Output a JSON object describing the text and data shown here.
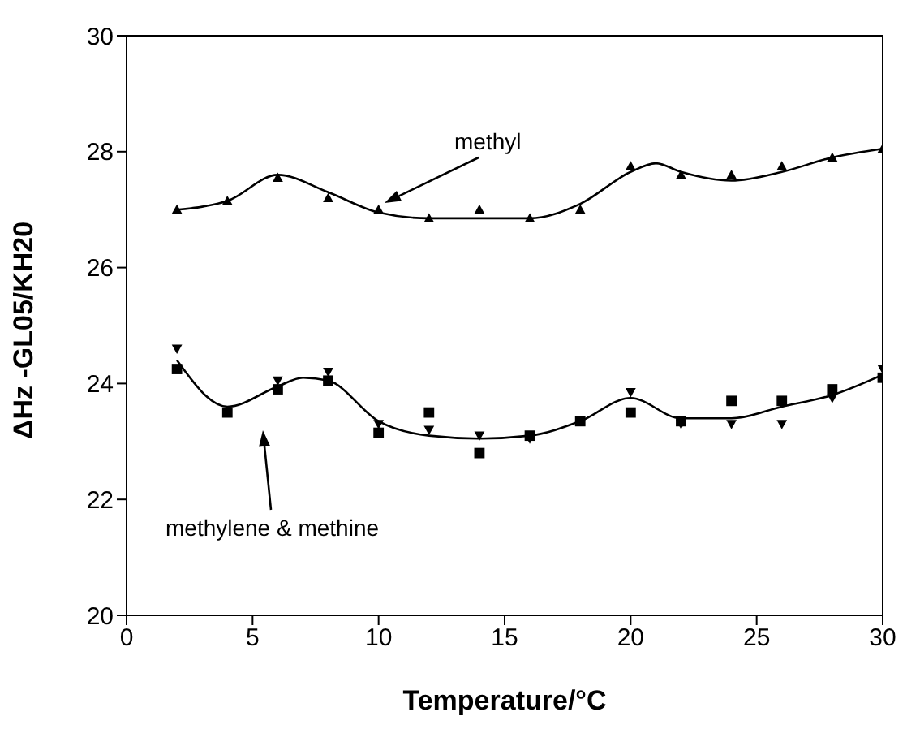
{
  "chart_data": {
    "type": "scatter",
    "xlabel": "Temperature/°C",
    "ylabel": "ΔHz  -GL05/KH20",
    "xlim": [
      0,
      30
    ],
    "ylim": [
      20,
      30
    ],
    "xticks": [
      0,
      5,
      10,
      15,
      20,
      25,
      30
    ],
    "yticks": [
      20,
      22,
      24,
      26,
      28,
      30
    ],
    "grid": false,
    "legend": false,
    "series": [
      {
        "marker": "triangle",
        "color": "#000000",
        "x": [
          2,
          4,
          6,
          8,
          10,
          12,
          14,
          16,
          18,
          20,
          22,
          24,
          26,
          28,
          30
        ],
        "values": [
          27.0,
          27.15,
          27.55,
          27.2,
          27.0,
          26.85,
          27.0,
          26.85,
          27.0,
          27.75,
          27.6,
          27.6,
          27.75,
          27.9,
          28.05
        ]
      },
      {
        "type": "line",
        "marker": "none",
        "color": "#000000",
        "x": [
          2,
          3,
          4,
          6,
          8,
          10,
          12,
          14,
          16,
          18,
          20,
          21,
          22,
          24,
          26,
          28,
          30
        ],
        "values": [
          27.0,
          27.05,
          27.15,
          27.6,
          27.3,
          26.95,
          26.85,
          26.85,
          26.85,
          27.1,
          27.65,
          27.8,
          27.65,
          27.5,
          27.65,
          27.9,
          28.05
        ]
      },
      {
        "marker": "square",
        "color": "#000000",
        "x": [
          2,
          4,
          6,
          8,
          10,
          12,
          14,
          16,
          18,
          20,
          22,
          24,
          26,
          28,
          30
        ],
        "values": [
          24.25,
          23.5,
          23.9,
          24.05,
          23.15,
          23.5,
          22.8,
          23.1,
          23.35,
          23.5,
          23.35,
          23.7,
          23.7,
          23.9,
          24.1
        ]
      },
      {
        "marker": "triangle-down",
        "color": "#000000",
        "x": [
          2,
          4,
          6,
          8,
          10,
          12,
          14,
          16,
          18,
          20,
          22,
          24,
          26,
          28,
          30
        ],
        "values": [
          24.6,
          null,
          24.05,
          24.2,
          23.3,
          23.2,
          23.1,
          23.05,
          null,
          23.85,
          23.3,
          23.3,
          23.3,
          23.75,
          24.25
        ]
      },
      {
        "type": "line",
        "marker": "none",
        "color": "#000000",
        "x": [
          2,
          4,
          6,
          7,
          8,
          10,
          12,
          14,
          16,
          18,
          20,
          22,
          24,
          26,
          28,
          30
        ],
        "values": [
          24.4,
          23.6,
          23.95,
          24.1,
          24.05,
          23.35,
          23.1,
          23.05,
          23.1,
          23.35,
          23.75,
          23.4,
          23.4,
          23.6,
          23.8,
          24.15
        ]
      }
    ],
    "annotations": [
      "methyl",
      "methylene & methine"
    ]
  }
}
